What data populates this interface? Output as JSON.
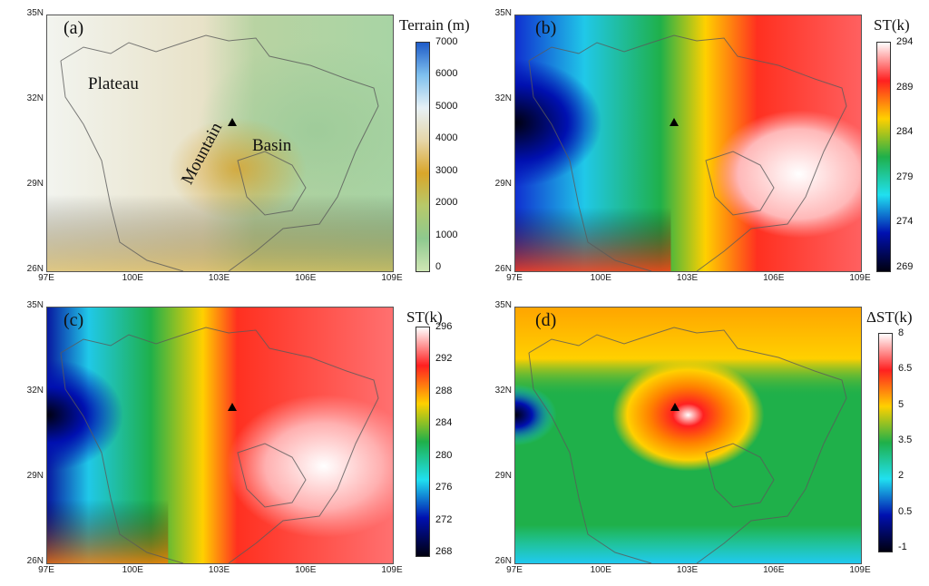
{
  "axes": {
    "lat_ticks": [
      "35N",
      "32N",
      "29N",
      "26N"
    ],
    "lon_ticks": [
      "97E",
      "100E",
      "103E",
      "106E",
      "109E"
    ]
  },
  "panels": [
    {
      "letter": "(a)",
      "field": "terrain",
      "colorbar": {
        "title": "Terrain (m)",
        "labels": [
          "7000",
          "6000",
          "5000",
          "4000",
          "3000",
          "2000",
          "1000",
          "0"
        ],
        "colors": [
          "#1e5bc8",
          "#7fc0ee",
          "#e7f1f6",
          "#e6d6a8",
          "#d9a62a",
          "#b7c96a",
          "#8ec98e",
          "#cfe6b5"
        ]
      },
      "region_labels": [
        "Plateau",
        "Mountain",
        "Basin"
      ],
      "marker": true
    },
    {
      "letter": "(b)",
      "field": "st_b",
      "colorbar": {
        "title": "ST(k)",
        "labels": [
          "294",
          "289",
          "284",
          "279",
          "274",
          "269"
        ],
        "colors": [
          "#ffffff",
          "#ff2020",
          "#ffd000",
          "#1fb04a",
          "#20e0f0",
          "#0010b0",
          "#000010"
        ]
      },
      "marker": true
    },
    {
      "letter": "(c)",
      "field": "st_c",
      "colorbar": {
        "title": "ST(k)",
        "labels": [
          "296",
          "292",
          "288",
          "284",
          "280",
          "276",
          "272",
          "268"
        ],
        "colors": [
          "#ffffff",
          "#ff2020",
          "#ffd000",
          "#1fb04a",
          "#20e0f0",
          "#0010b0",
          "#000010"
        ]
      },
      "marker": true
    },
    {
      "letter": "(d)",
      "field": "dst_d",
      "colorbar": {
        "title": "ΔST(k)",
        "labels": [
          "8",
          "6.5",
          "5",
          "3.5",
          "2",
          "0.5",
          "-1"
        ],
        "colors": [
          "#ffffff",
          "#ff2020",
          "#ffd000",
          "#1fb04a",
          "#20e0f0",
          "#0010b0",
          "#000010"
        ]
      },
      "marker": true
    }
  ]
}
